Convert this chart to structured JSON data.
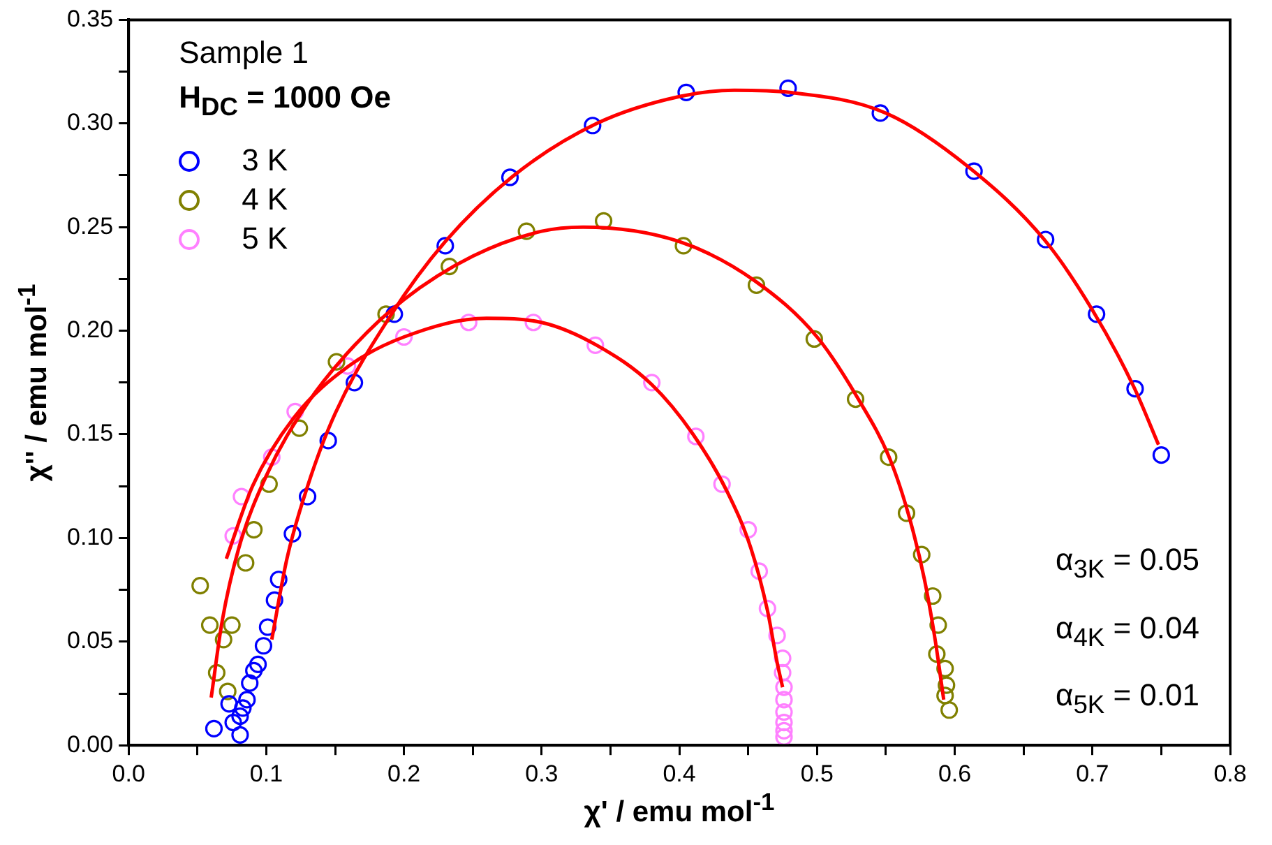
{
  "chart_data": {
    "type": "scatter",
    "xlabel": "χ' / emu mol$^{-1}$",
    "ylabel": "χ'' / emu mol$^{-1}$",
    "xlim": [
      0,
      0.8
    ],
    "ylim": [
      0,
      0.35
    ],
    "xticks": [
      {
        "value": 0,
        "label": "0.0"
      },
      {
        "value": 0.05,
        "label": null
      },
      {
        "value": 0.1,
        "label": "0.1"
      },
      {
        "value": 0.15,
        "label": null
      },
      {
        "value": 0.2,
        "label": "0.2"
      },
      {
        "value": 0.25,
        "label": null
      },
      {
        "value": 0.3,
        "label": "0.3"
      },
      {
        "value": 0.35,
        "label": null
      },
      {
        "value": 0.4,
        "label": "0.4"
      },
      {
        "value": 0.45,
        "label": null
      },
      {
        "value": 0.5,
        "label": "0.5"
      },
      {
        "value": 0.55,
        "label": null
      },
      {
        "value": 0.6,
        "label": "0.6"
      },
      {
        "value": 0.65,
        "label": null
      },
      {
        "value": 0.7,
        "label": "0.7"
      },
      {
        "value": 0.75,
        "label": null
      },
      {
        "value": 0.8,
        "label": "0.8"
      }
    ],
    "yticks": [
      {
        "value": 0,
        "label": "0.00"
      },
      {
        "value": 0.025,
        "label": null
      },
      {
        "value": 0.05,
        "label": "0.05"
      },
      {
        "value": 0.075,
        "label": null
      },
      {
        "value": 0.1,
        "label": "0.10"
      },
      {
        "value": 0.125,
        "label": null
      },
      {
        "value": 0.15,
        "label": "0.15"
      },
      {
        "value": 0.175,
        "label": null
      },
      {
        "value": 0.2,
        "label": "0.20"
      },
      {
        "value": 0.225,
        "label": null
      },
      {
        "value": 0.25,
        "label": "0.25"
      },
      {
        "value": 0.275,
        "label": null
      },
      {
        "value": 0.3,
        "label": "0.30"
      },
      {
        "value": 0.325,
        "label": null
      },
      {
        "value": 0.35,
        "label": "0.35"
      }
    ],
    "grid": false,
    "legend": "top left",
    "marker": "circle",
    "annotations": [
      "Sample 1",
      "H$_{DC}$ = 1000 Oe",
      "α$_{3K}$ = 0.05",
      "α$_{4K}$ = 0.04",
      "α$_{5K}$ = 0.01"
    ],
    "series": [
      {
        "name": "3 K",
        "color": "#0000ff",
        "x": [
          0.062,
          0.081,
          0.076,
          0.081,
          0.083,
          0.073,
          0.086,
          0.088,
          0.091,
          0.094,
          0.098,
          0.101,
          0.106,
          0.109,
          0.119,
          0.13,
          0.145,
          0.164,
          0.193,
          0.23,
          0.277,
          0.337,
          0.405,
          0.479,
          0.546,
          0.614,
          0.666,
          0.703,
          0.731,
          0.75
        ],
        "values": [
          0.008,
          0.005,
          0.011,
          0.014,
          0.018,
          0.02,
          0.022,
          0.03,
          0.036,
          0.039,
          0.048,
          0.057,
          0.07,
          0.08,
          0.102,
          0.12,
          0.147,
          0.175,
          0.208,
          0.241,
          0.274,
          0.299,
          0.315,
          0.317,
          0.305,
          0.277,
          0.244,
          0.208,
          0.172,
          0.14
        ]
      },
      {
        "name": "4 K",
        "color": "#808000",
        "x": [
          0.052,
          0.059,
          0.064,
          0.069,
          0.072,
          0.075,
          0.085,
          0.091,
          0.102,
          0.124,
          0.151,
          0.187,
          0.233,
          0.289,
          0.345,
          0.403,
          0.456,
          0.498,
          0.528,
          0.552,
          0.565,
          0.576,
          0.584,
          0.588,
          0.587,
          0.593,
          0.594,
          0.593,
          0.596
        ],
        "values": [
          0.077,
          0.058,
          0.035,
          0.051,
          0.026,
          0.058,
          0.088,
          0.104,
          0.126,
          0.153,
          0.185,
          0.208,
          0.231,
          0.248,
          0.253,
          0.241,
          0.222,
          0.196,
          0.167,
          0.139,
          0.112,
          0.092,
          0.072,
          0.058,
          0.044,
          0.037,
          0.029,
          0.024,
          0.017
        ]
      },
      {
        "name": "5 K",
        "color": "#ff80ff",
        "x": [
          0.076,
          0.082,
          0.104,
          0.121,
          0.159,
          0.2,
          0.247,
          0.294,
          0.339,
          0.38,
          0.412,
          0.431,
          0.45,
          0.458,
          0.464,
          0.471,
          0.475,
          0.475,
          0.476,
          0.476,
          0.476,
          0.476,
          0.476,
          0.476
        ],
        "values": [
          0.101,
          0.12,
          0.139,
          0.161,
          0.183,
          0.197,
          0.204,
          0.204,
          0.193,
          0.175,
          0.149,
          0.126,
          0.104,
          0.084,
          0.066,
          0.053,
          0.042,
          0.035,
          0.028,
          0.022,
          0.016,
          0.011,
          0.007,
          0.004
        ]
      },
      {
        "type": "line",
        "marker": "none",
        "color": "#ff0000",
        "x": [
          0.104,
          0.115,
          0.13,
          0.15,
          0.19,
          0.23,
          0.28,
          0.34,
          0.4,
          0.44,
          0.48,
          0.55,
          0.61,
          0.665,
          0.7,
          0.73,
          0.748
        ],
        "values": [
          0.051,
          0.09,
          0.125,
          0.16,
          0.207,
          0.243,
          0.275,
          0.3,
          0.313,
          0.316,
          0.315,
          0.305,
          0.279,
          0.244,
          0.21,
          0.173,
          0.145
        ]
      },
      {
        "type": "line",
        "marker": "none",
        "color": "#ff0000",
        "x": [
          0.06,
          0.068,
          0.08,
          0.1,
          0.13,
          0.16,
          0.2,
          0.25,
          0.3,
          0.33,
          0.4,
          0.455,
          0.5,
          0.53,
          0.553,
          0.567,
          0.578,
          0.586,
          0.592
        ],
        "values": [
          0.023,
          0.06,
          0.095,
          0.13,
          0.165,
          0.19,
          0.215,
          0.236,
          0.248,
          0.25,
          0.243,
          0.224,
          0.197,
          0.167,
          0.138,
          0.11,
          0.08,
          0.05,
          0.022
        ]
      },
      {
        "type": "line",
        "marker": "none",
        "color": "#ff0000",
        "x": [
          0.071,
          0.09,
          0.12,
          0.16,
          0.2,
          0.26,
          0.3,
          0.34,
          0.38,
          0.41,
          0.435,
          0.452,
          0.464,
          0.471,
          0.475
        ],
        "values": [
          0.09,
          0.125,
          0.158,
          0.183,
          0.197,
          0.206,
          0.204,
          0.193,
          0.174,
          0.15,
          0.122,
          0.095,
          0.065,
          0.04,
          0.028
        ]
      }
    ]
  }
}
